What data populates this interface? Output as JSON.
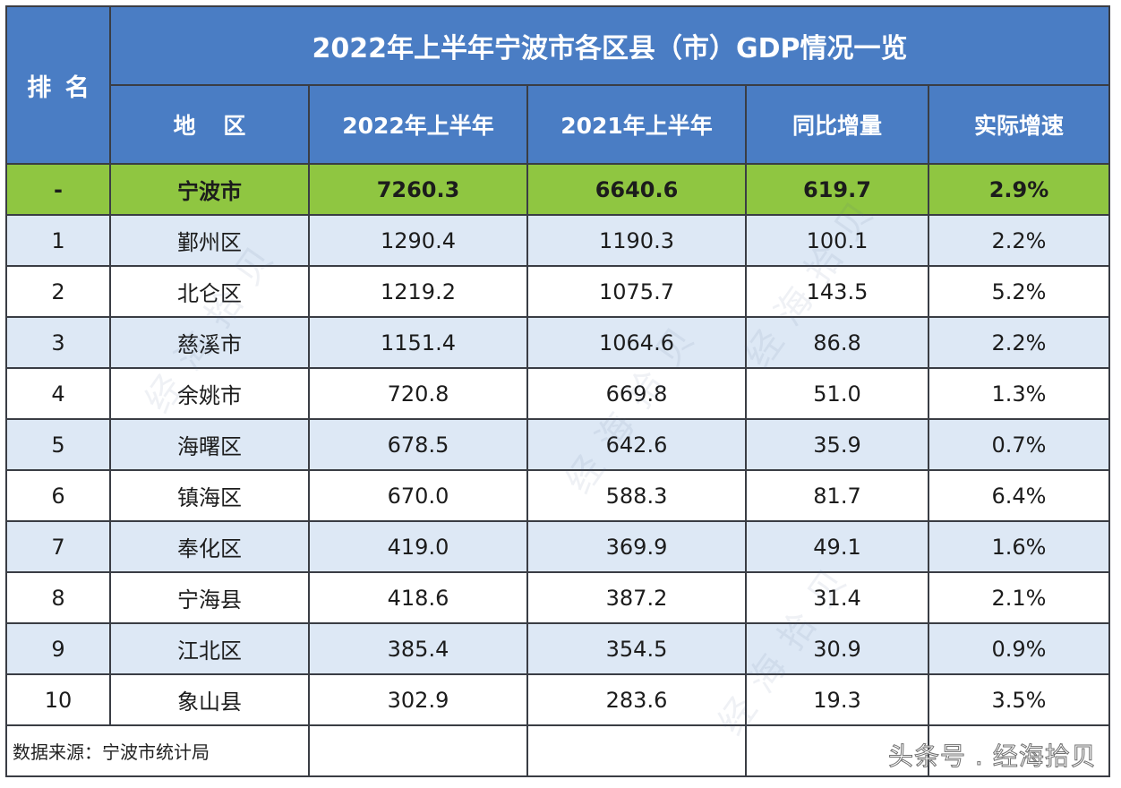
{
  "chart_data": {
    "type": "table",
    "title": "2022年上半年宁波市各区县（市）GDP情况一览",
    "columns": [
      "排 名",
      "地 区",
      "2022年上半年",
      "2021年上半年",
      "同比增量",
      "实际增速"
    ],
    "rows": [
      [
        "-",
        "宁波市",
        "7260.3",
        "6640.6",
        "619.7",
        "2.9%"
      ],
      [
        "1",
        "鄞州区",
        "1290.4",
        "1190.3",
        "100.1",
        "2.2%"
      ],
      [
        "2",
        "北仑区",
        "1219.2",
        "1075.7",
        "143.5",
        "5.2%"
      ],
      [
        "3",
        "慈溪市",
        "1151.4",
        "1064.6",
        "86.8",
        "2.2%"
      ],
      [
        "4",
        "余姚市",
        "720.8",
        "669.8",
        "51.0",
        "1.3%"
      ],
      [
        "5",
        "海曙区",
        "678.5",
        "642.6",
        "35.9",
        "0.7%"
      ],
      [
        "6",
        "镇海区",
        "670.0",
        "588.3",
        "81.7",
        "6.4%"
      ],
      [
        "7",
        "奉化区",
        "419.0",
        "369.9",
        "49.1",
        "1.6%"
      ],
      [
        "8",
        "宁海县",
        "418.6",
        "387.2",
        "31.4",
        "2.1%"
      ],
      [
        "9",
        "江北区",
        "385.4",
        "354.5",
        "30.9",
        "0.9%"
      ],
      [
        "10",
        "象山县",
        "302.9",
        "283.6",
        "19.3",
        "3.5%"
      ]
    ],
    "source": "数据来源：宁波市统计局"
  },
  "watermark": {
    "corner_text": "头条号 . 经海拾贝",
    "background_text": "经海拾贝"
  },
  "colors": {
    "header_bg": "#4a7dc4",
    "header_text": "#ffffff",
    "highlight_bg": "#8fc641",
    "stripe_bg": "#dde8f5",
    "plain_bg": "#ffffff",
    "grid_line": "#3a3d44",
    "body_text": "#1c1c1c"
  }
}
